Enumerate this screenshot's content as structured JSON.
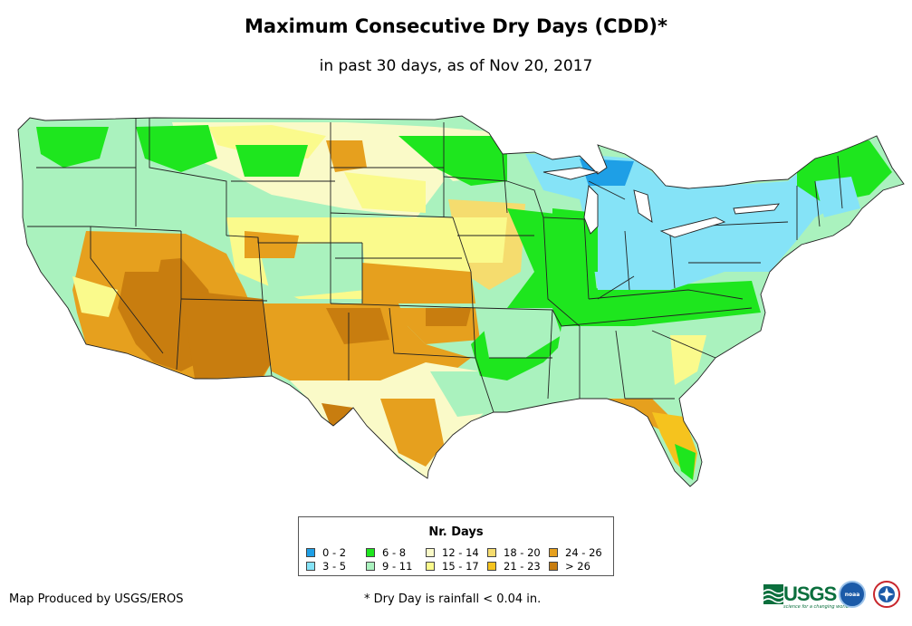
{
  "title": "Maximum Consecutive Dry Days (CDD)*",
  "subtitle": "in past 30 days, as of Nov 20, 2017",
  "legend": {
    "title": "Nr. Days",
    "items": [
      {
        "label": "0 - 2",
        "color": "#1e9fe6"
      },
      {
        "label": "3 - 5",
        "color": "#85e3f7"
      },
      {
        "label": "6 - 8",
        "color": "#1ee61e"
      },
      {
        "label": "9 - 11",
        "color": "#aaf2be"
      },
      {
        "label": "12 - 14",
        "color": "#fafac8"
      },
      {
        "label": "15 - 17",
        "color": "#fafa8c"
      },
      {
        "label": "18 - 20",
        "color": "#f5dc6e"
      },
      {
        "label": "21 - 23",
        "color": "#f5c31e"
      },
      {
        "label": "24 - 26",
        "color": "#e6a01e"
      },
      {
        "label": "> 26",
        "color": "#c87d0f"
      }
    ]
  },
  "credit": "Map Produced by USGS/EROS",
  "footnote": "* Dry Day is rainfall < 0.04 in.",
  "logos": {
    "usgs": "USGS",
    "usgs_tagline": "science for a changing world",
    "noaa": "noaa"
  },
  "map_regions": [
    {
      "region": "Pacific Northwest / northern Rockies",
      "days": "9 - 11"
    },
    {
      "region": "Southwest (Arizona, southern Nevada, SE California)",
      "days": "> 26"
    },
    {
      "region": "Southern Plains / New Mexico / Texas",
      "days": "21 - 26"
    },
    {
      "region": "Mississippi Valley",
      "days": "6 - 8"
    },
    {
      "region": "Great Lakes / Ohio Valley / Northeast",
      "days": "3 - 5"
    },
    {
      "region": "Southeast",
      "days": "9 - 11"
    },
    {
      "region": "Florida / Gulf coast",
      "days": "21 - 23"
    }
  ]
}
